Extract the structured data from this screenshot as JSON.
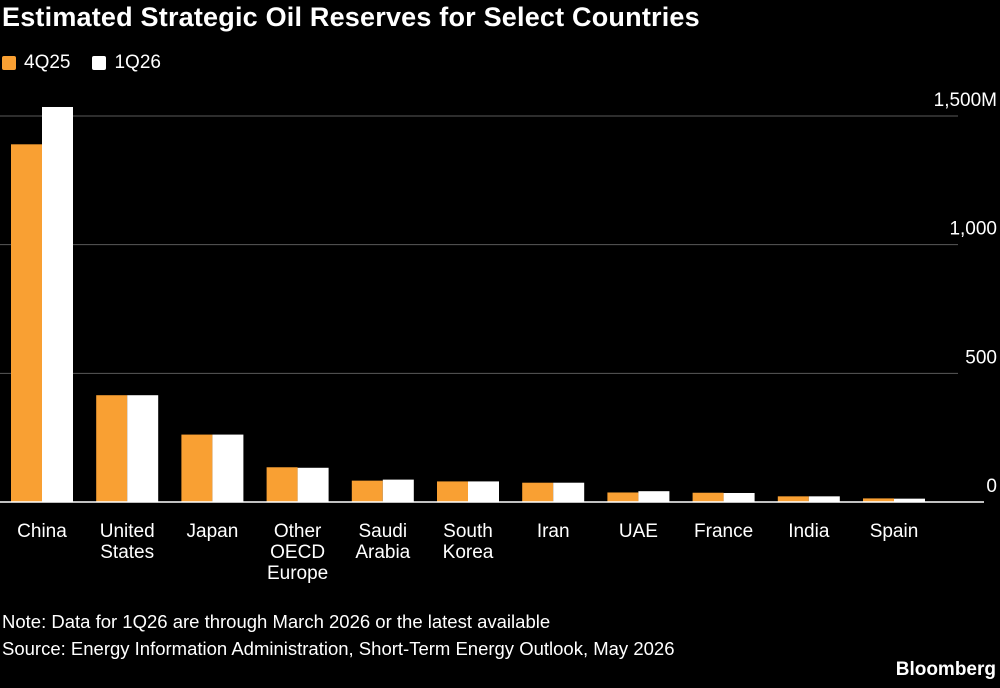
{
  "title": "Estimated Strategic Oil Reserves for Select Countries",
  "legend": [
    {
      "label": "4Q25",
      "color": "#f9a033"
    },
    {
      "label": "1Q26",
      "color": "#ffffff"
    }
  ],
  "chart_data": {
    "type": "bar",
    "title": "Estimated Strategic Oil Reserves for Select Countries",
    "xlabel": "",
    "ylabel": "",
    "ylim": [
      0,
      1500
    ],
    "y_ticks": [
      0,
      500,
      1000,
      1500
    ],
    "y_tick_labels": [
      "0",
      "500",
      "1,000",
      "1,500M"
    ],
    "grid": true,
    "legend_position": "top-left",
    "y_axis_position": "right",
    "categories": [
      [
        "China"
      ],
      [
        "United",
        "States"
      ],
      [
        "Japan"
      ],
      [
        "Other",
        "OECD",
        "Europe"
      ],
      [
        "Saudi",
        "Arabia"
      ],
      [
        "South",
        "Korea"
      ],
      [
        "Iran"
      ],
      [
        "UAE"
      ],
      [
        "France"
      ],
      [
        "India"
      ],
      [
        "Spain"
      ]
    ],
    "series": [
      {
        "name": "4Q25",
        "color": "#f9a033",
        "values": [
          1390,
          415,
          262,
          135,
          83,
          80,
          75,
          37,
          36,
          22,
          14
        ]
      },
      {
        "name": "1Q26",
        "color": "#ffffff",
        "values": [
          1535,
          415,
          262,
          133,
          87,
          80,
          75,
          42,
          35,
          22,
          13
        ]
      }
    ]
  },
  "footer": {
    "note": "Note: Data for 1Q26 are through March 2026 or the latest available",
    "source": "Source: Energy Information Administration, Short-Term Energy Outlook, May 2026",
    "brand": "Bloomberg"
  }
}
